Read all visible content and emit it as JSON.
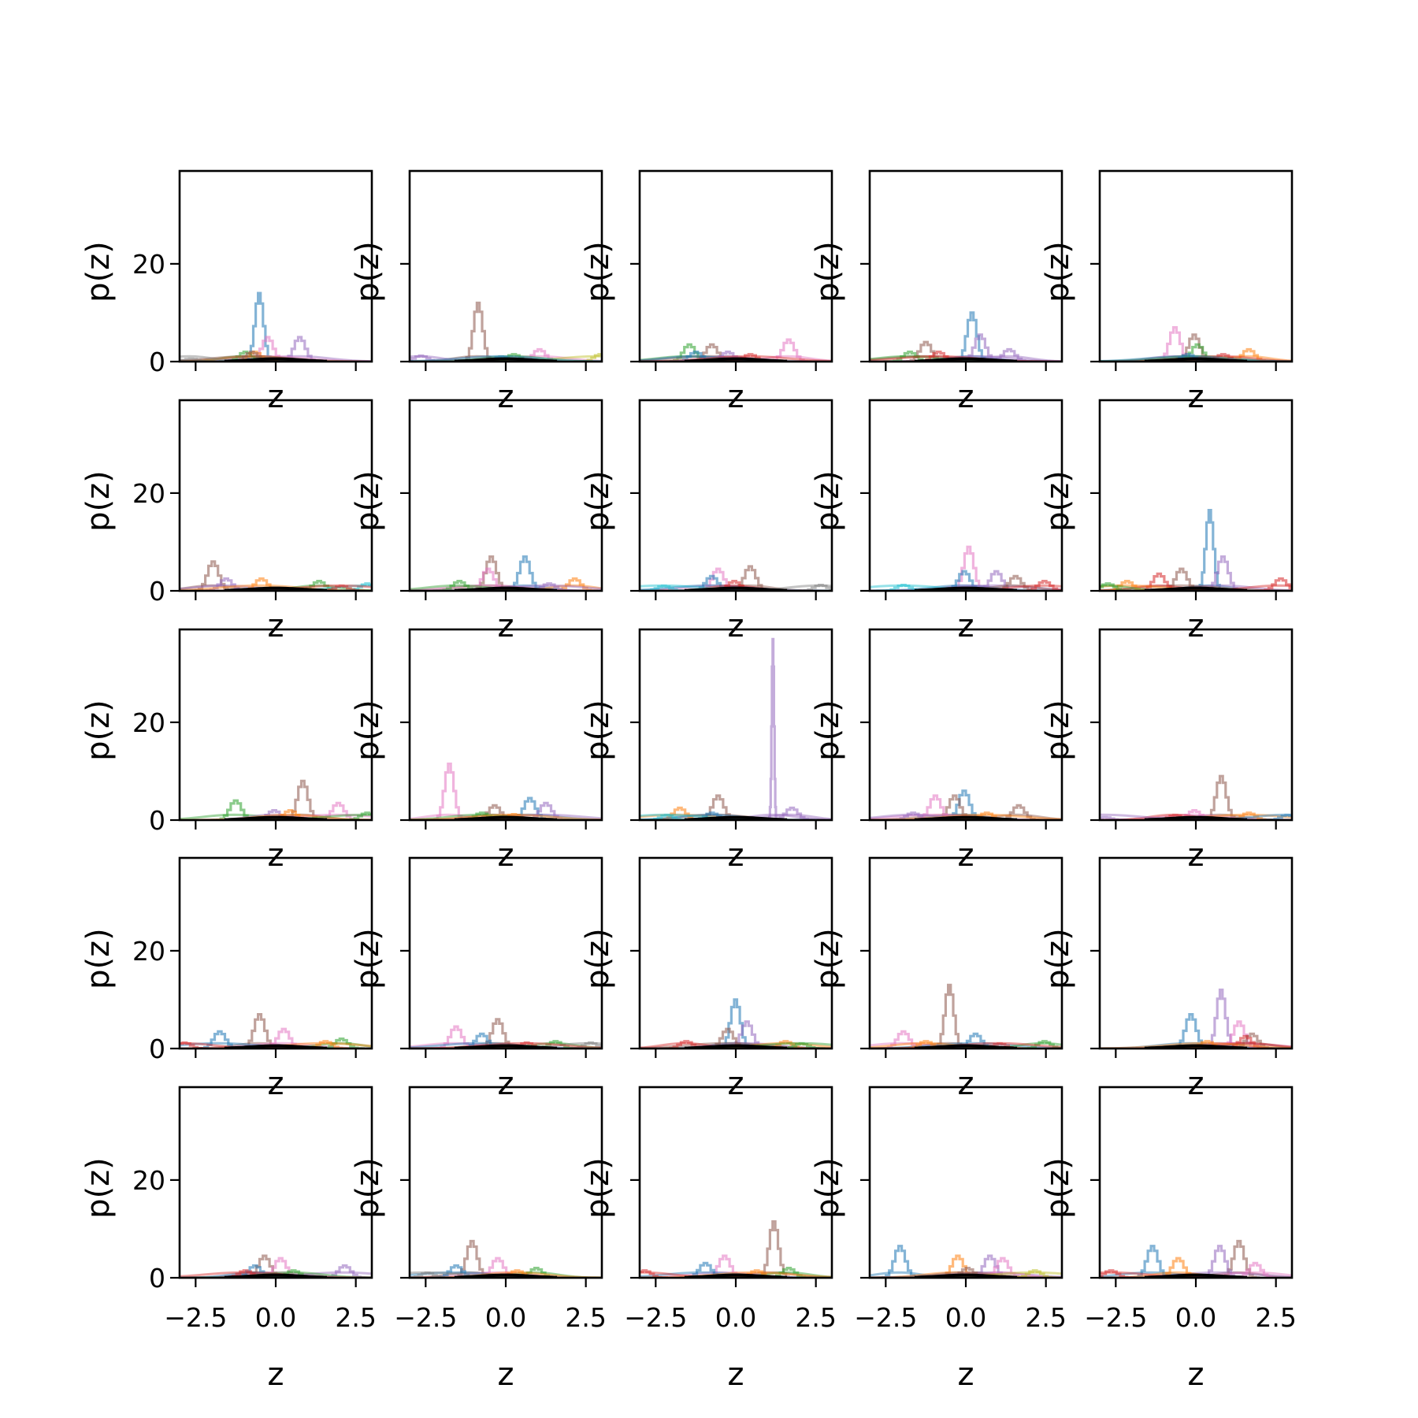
{
  "chart_data": {
    "type": "line",
    "grid": {
      "rows": 5,
      "cols": 5
    },
    "xlabel": "z",
    "ylabel": "p(z)",
    "xlim": [
      -3.0,
      3.0
    ],
    "ylim": [
      0,
      39
    ],
    "xticks": [
      -2.5,
      0.0,
      2.5
    ],
    "xtick_labels": [
      "−2.5",
      "0.0",
      "2.5"
    ],
    "yticks": [
      0,
      20
    ],
    "ytick_labels": [
      "0",
      "20"
    ],
    "grid_lines": false,
    "legend": "none",
    "series_colors": [
      "#1f77b4",
      "#ff7f0e",
      "#2ca02c",
      "#d62728",
      "#9467bd",
      "#8c564b",
      "#e377c2",
      "#7f7f7f",
      "#bcbd22",
      "#17becf"
    ],
    "baseline_color": "#000000",
    "panels": [
      {
        "row": 1,
        "col": 1,
        "peaks": [
          {
            "color": "#1f77b4",
            "x": -0.55,
            "height": 14
          },
          {
            "color": "#9467bd",
            "x": 0.7,
            "height": 5
          },
          {
            "color": "#e377c2",
            "x": -0.3,
            "height": 5
          },
          {
            "color": "#2ca02c",
            "x": -1.0,
            "height": 2
          },
          {
            "color": "#ff7f0e",
            "x": -0.7,
            "height": 2
          },
          {
            "color": "#8c564b",
            "x": -0.8,
            "height": 2
          },
          {
            "color": "#7f7f7f",
            "x": -2.7,
            "height": 0.6
          }
        ]
      },
      {
        "row": 1,
        "col": 2,
        "peaks": [
          {
            "color": "#8c564b",
            "x": -0.9,
            "height": 12
          },
          {
            "color": "#e377c2",
            "x": 1.0,
            "height": 2.5
          },
          {
            "color": "#bcbd22",
            "x": 2.9,
            "height": 1.5
          },
          {
            "color": "#9467bd",
            "x": -2.7,
            "height": 1.2
          },
          {
            "color": "#2ca02c",
            "x": 0.2,
            "height": 1.5
          },
          {
            "color": "#1f77b4",
            "x": -0.2,
            "height": 1.0
          }
        ]
      },
      {
        "row": 1,
        "col": 3,
        "peaks": [
          {
            "color": "#e377c2",
            "x": 1.6,
            "height": 4.5
          },
          {
            "color": "#2ca02c",
            "x": -1.5,
            "height": 3.5
          },
          {
            "color": "#8c564b",
            "x": -0.8,
            "height": 3.5
          },
          {
            "color": "#9467bd",
            "x": -0.3,
            "height": 2
          },
          {
            "color": "#1f77b4",
            "x": -1.3,
            "height": 2
          },
          {
            "color": "#d62728",
            "x": 0.4,
            "height": 1.5
          }
        ]
      },
      {
        "row": 1,
        "col": 4,
        "peaks": [
          {
            "color": "#1f77b4",
            "x": 0.15,
            "height": 10
          },
          {
            "color": "#9467bd",
            "x": 0.4,
            "height": 5.5
          },
          {
            "color": "#8c564b",
            "x": -1.3,
            "height": 4
          },
          {
            "color": "#9467bd",
            "x": 1.3,
            "height": 2.5
          },
          {
            "color": "#2ca02c",
            "x": -1.8,
            "height": 2
          },
          {
            "color": "#d62728",
            "x": -0.9,
            "height": 2
          }
        ]
      },
      {
        "row": 1,
        "col": 5,
        "peaks": [
          {
            "color": "#e377c2",
            "x": -0.7,
            "height": 7
          },
          {
            "color": "#8c564b",
            "x": -0.1,
            "height": 5.5
          },
          {
            "color": "#2ca02c",
            "x": 0.0,
            "height": 3.5
          },
          {
            "color": "#ff7f0e",
            "x": 1.6,
            "height": 2.5
          },
          {
            "color": "#d62728",
            "x": 0.8,
            "height": 1.5
          },
          {
            "color": "#1f77b4",
            "x": -0.3,
            "height": 1.5
          }
        ]
      },
      {
        "row": 2,
        "col": 1,
        "peaks": [
          {
            "color": "#8c564b",
            "x": -2.0,
            "height": 6
          },
          {
            "color": "#9467bd",
            "x": -1.6,
            "height": 2.5
          },
          {
            "color": "#ff7f0e",
            "x": -0.5,
            "height": 2.5
          },
          {
            "color": "#2ca02c",
            "x": 1.3,
            "height": 2
          },
          {
            "color": "#17becf",
            "x": 2.8,
            "height": 1.5
          },
          {
            "color": "#d62728",
            "x": 2.0,
            "height": 1
          }
        ]
      },
      {
        "row": 2,
        "col": 2,
        "peaks": [
          {
            "color": "#1f77b4",
            "x": 0.55,
            "height": 7
          },
          {
            "color": "#8c564b",
            "x": -0.5,
            "height": 7
          },
          {
            "color": "#e377c2",
            "x": -0.6,
            "height": 4.5
          },
          {
            "color": "#ff7f0e",
            "x": 2.1,
            "height": 2.5
          },
          {
            "color": "#2ca02c",
            "x": -1.5,
            "height": 2
          },
          {
            "color": "#9467bd",
            "x": 1.3,
            "height": 1.5
          }
        ]
      },
      {
        "row": 2,
        "col": 3,
        "peaks": [
          {
            "color": "#8c564b",
            "x": 0.4,
            "height": 5
          },
          {
            "color": "#e377c2",
            "x": -0.6,
            "height": 4.5
          },
          {
            "color": "#1f77b4",
            "x": -0.8,
            "height": 3
          },
          {
            "color": "#d62728",
            "x": -0.1,
            "height": 2
          },
          {
            "color": "#7f7f7f",
            "x": 2.6,
            "height": 1.2
          },
          {
            "color": "#17becf",
            "x": -2.3,
            "height": 1
          }
        ]
      },
      {
        "row": 2,
        "col": 4,
        "peaks": [
          {
            "color": "#e377c2",
            "x": 0.05,
            "height": 9
          },
          {
            "color": "#1f77b4",
            "x": -0.1,
            "height": 4
          },
          {
            "color": "#9467bd",
            "x": 0.9,
            "height": 4
          },
          {
            "color": "#8c564b",
            "x": 1.5,
            "height": 3
          },
          {
            "color": "#d62728",
            "x": 2.4,
            "height": 2
          },
          {
            "color": "#17becf",
            "x": -2.0,
            "height": 1.2
          }
        ]
      },
      {
        "row": 2,
        "col": 5,
        "peaks": [
          {
            "color": "#1f77b4",
            "x": 0.4,
            "height": 16.5
          },
          {
            "color": "#9467bd",
            "x": 0.8,
            "height": 7
          },
          {
            "color": "#8c564b",
            "x": -0.5,
            "height": 4.5
          },
          {
            "color": "#d62728",
            "x": -1.2,
            "height": 3.5
          },
          {
            "color": "#d62728",
            "x": 2.6,
            "height": 2.5
          },
          {
            "color": "#ff7f0e",
            "x": -2.2,
            "height": 2
          },
          {
            "color": "#2ca02c",
            "x": -2.8,
            "height": 1.5
          }
        ]
      },
      {
        "row": 3,
        "col": 1,
        "peaks": [
          {
            "color": "#8c564b",
            "x": 0.8,
            "height": 8
          },
          {
            "color": "#2ca02c",
            "x": -1.3,
            "height": 4
          },
          {
            "color": "#e377c2",
            "x": 1.9,
            "height": 3.5
          },
          {
            "color": "#9467bd",
            "x": -0.1,
            "height": 2
          },
          {
            "color": "#ff7f0e",
            "x": 0.4,
            "height": 2
          },
          {
            "color": "#2ca02c",
            "x": 2.8,
            "height": 1.5
          }
        ]
      },
      {
        "row": 3,
        "col": 2,
        "peaks": [
          {
            "color": "#e377c2",
            "x": -1.8,
            "height": 11.5
          },
          {
            "color": "#1f77b4",
            "x": 0.7,
            "height": 4.5
          },
          {
            "color": "#9467bd",
            "x": 1.2,
            "height": 3.5
          },
          {
            "color": "#8c564b",
            "x": -0.4,
            "height": 3
          },
          {
            "color": "#2ca02c",
            "x": -0.8,
            "height": 1.5
          },
          {
            "color": "#ff7f0e",
            "x": 0.2,
            "height": 1.2
          }
        ]
      },
      {
        "row": 3,
        "col": 3,
        "peaks": [
          {
            "color": "#9467bd",
            "x": 1.15,
            "height": 37
          },
          {
            "color": "#8c564b",
            "x": -0.6,
            "height": 5
          },
          {
            "color": "#ff7f0e",
            "x": -1.8,
            "height": 2.5
          },
          {
            "color": "#9467bd",
            "x": 1.7,
            "height": 2.5
          },
          {
            "color": "#1f77b4",
            "x": -0.8,
            "height": 1.5
          },
          {
            "color": "#17becf",
            "x": -2.2,
            "height": 1
          }
        ]
      },
      {
        "row": 3,
        "col": 4,
        "peaks": [
          {
            "color": "#1f77b4",
            "x": -0.1,
            "height": 6
          },
          {
            "color": "#8c564b",
            "x": -0.4,
            "height": 5
          },
          {
            "color": "#e377c2",
            "x": -1.0,
            "height": 5
          },
          {
            "color": "#8c564b",
            "x": 1.6,
            "height": 3
          },
          {
            "color": "#9467bd",
            "x": -1.7,
            "height": 1.5
          },
          {
            "color": "#ff7f0e",
            "x": 0.6,
            "height": 1.5
          }
        ]
      },
      {
        "row": 3,
        "col": 5,
        "peaks": [
          {
            "color": "#8c564b",
            "x": 0.75,
            "height": 9
          },
          {
            "color": "#e377c2",
            "x": -0.1,
            "height": 2
          },
          {
            "color": "#ff7f0e",
            "x": 1.6,
            "height": 1.5
          },
          {
            "color": "#d62728",
            "x": -0.7,
            "height": 1
          },
          {
            "color": "#1f77b4",
            "x": 2.8,
            "height": 1
          },
          {
            "color": "#9467bd",
            "x": -2.9,
            "height": 0.6
          }
        ]
      },
      {
        "row": 4,
        "col": 1,
        "peaks": [
          {
            "color": "#8c564b",
            "x": -0.55,
            "height": 7
          },
          {
            "color": "#e377c2",
            "x": 0.2,
            "height": 4
          },
          {
            "color": "#1f77b4",
            "x": -1.8,
            "height": 3.5
          },
          {
            "color": "#2ca02c",
            "x": 2.0,
            "height": 2
          },
          {
            "color": "#d62728",
            "x": -2.9,
            "height": 1.2
          },
          {
            "color": "#ff7f0e",
            "x": 1.5,
            "height": 1.5
          }
        ]
      },
      {
        "row": 4,
        "col": 2,
        "peaks": [
          {
            "color": "#8c564b",
            "x": -0.3,
            "height": 6
          },
          {
            "color": "#e377c2",
            "x": -1.6,
            "height": 4.5
          },
          {
            "color": "#1f77b4",
            "x": -0.8,
            "height": 3
          },
          {
            "color": "#2ca02c",
            "x": 1.5,
            "height": 1.5
          },
          {
            "color": "#7f7f7f",
            "x": 2.6,
            "height": 1.2
          },
          {
            "color": "#d62728",
            "x": 0.6,
            "height": 1.2
          }
        ]
      },
      {
        "row": 4,
        "col": 3,
        "peaks": [
          {
            "color": "#1f77b4",
            "x": -0.05,
            "height": 10
          },
          {
            "color": "#9467bd",
            "x": 0.3,
            "height": 5.5
          },
          {
            "color": "#8c564b",
            "x": -0.3,
            "height": 4
          },
          {
            "color": "#d62728",
            "x": -1.6,
            "height": 1.5
          },
          {
            "color": "#ff7f0e",
            "x": 1.5,
            "height": 1.5
          },
          {
            "color": "#2ca02c",
            "x": 2.0,
            "height": 1
          }
        ]
      },
      {
        "row": 4,
        "col": 4,
        "peaks": [
          {
            "color": "#8c564b",
            "x": -0.55,
            "height": 13
          },
          {
            "color": "#e377c2",
            "x": -2.0,
            "height": 3.5
          },
          {
            "color": "#1f77b4",
            "x": 0.25,
            "height": 3
          },
          {
            "color": "#2ca02c",
            "x": 2.4,
            "height": 1.5
          },
          {
            "color": "#ff7f0e",
            "x": -1.3,
            "height": 1.5
          },
          {
            "color": "#d62728",
            "x": 1.0,
            "height": 1
          }
        ]
      },
      {
        "row": 4,
        "col": 5,
        "peaks": [
          {
            "color": "#9467bd",
            "x": 0.75,
            "height": 12
          },
          {
            "color": "#1f77b4",
            "x": -0.2,
            "height": 7
          },
          {
            "color": "#e377c2",
            "x": 1.3,
            "height": 5.5
          },
          {
            "color": "#8c564b",
            "x": 1.7,
            "height": 3
          },
          {
            "color": "#d62728",
            "x": 1.5,
            "height": 2.5
          },
          {
            "color": "#ff7f0e",
            "x": 0.3,
            "height": 1.5
          }
        ]
      },
      {
        "row": 5,
        "col": 1,
        "peaks": [
          {
            "color": "#8c564b",
            "x": -0.4,
            "height": 4.5
          },
          {
            "color": "#e377c2",
            "x": 0.1,
            "height": 4
          },
          {
            "color": "#9467bd",
            "x": 2.1,
            "height": 2.5
          },
          {
            "color": "#1f77b4",
            "x": -0.7,
            "height": 2.5
          },
          {
            "color": "#2ca02c",
            "x": 0.5,
            "height": 1.5
          },
          {
            "color": "#d62728",
            "x": -1.0,
            "height": 1.5
          }
        ]
      },
      {
        "row": 5,
        "col": 2,
        "peaks": [
          {
            "color": "#8c564b",
            "x": -1.1,
            "height": 7.5
          },
          {
            "color": "#e377c2",
            "x": -0.3,
            "height": 4
          },
          {
            "color": "#1f77b4",
            "x": -1.6,
            "height": 2.5
          },
          {
            "color": "#2ca02c",
            "x": 0.9,
            "height": 2
          },
          {
            "color": "#ff7f0e",
            "x": 0.3,
            "height": 1.5
          },
          {
            "color": "#7f7f7f",
            "x": -2.5,
            "height": 1
          }
        ]
      },
      {
        "row": 5,
        "col": 3,
        "peaks": [
          {
            "color": "#8c564b",
            "x": 1.15,
            "height": 11.5
          },
          {
            "color": "#e377c2",
            "x": -0.4,
            "height": 4.5
          },
          {
            "color": "#1f77b4",
            "x": -1.0,
            "height": 3
          },
          {
            "color": "#2ca02c",
            "x": 1.6,
            "height": 2
          },
          {
            "color": "#d62728",
            "x": -2.9,
            "height": 1.5
          },
          {
            "color": "#ff7f0e",
            "x": 0.6,
            "height": 1.5
          }
        ]
      },
      {
        "row": 5,
        "col": 4,
        "peaks": [
          {
            "color": "#1f77b4",
            "x": -2.1,
            "height": 6.5
          },
          {
            "color": "#ff7f0e",
            "x": -0.3,
            "height": 4.5
          },
          {
            "color": "#9467bd",
            "x": 0.7,
            "height": 4.5
          },
          {
            "color": "#e377c2",
            "x": 1.1,
            "height": 4
          },
          {
            "color": "#8c564b",
            "x": 0.0,
            "height": 2
          },
          {
            "color": "#bcbd22",
            "x": 2.1,
            "height": 1.5
          }
        ]
      },
      {
        "row": 5,
        "col": 5,
        "peaks": [
          {
            "color": "#8c564b",
            "x": 1.3,
            "height": 7.5
          },
          {
            "color": "#1f77b4",
            "x": -1.4,
            "height": 6.5
          },
          {
            "color": "#9467bd",
            "x": 0.7,
            "height": 6.5
          },
          {
            "color": "#ff7f0e",
            "x": -0.6,
            "height": 4
          },
          {
            "color": "#e377c2",
            "x": 1.8,
            "height": 3
          },
          {
            "color": "#d62728",
            "x": -2.7,
            "height": 1.5
          }
        ]
      }
    ]
  }
}
